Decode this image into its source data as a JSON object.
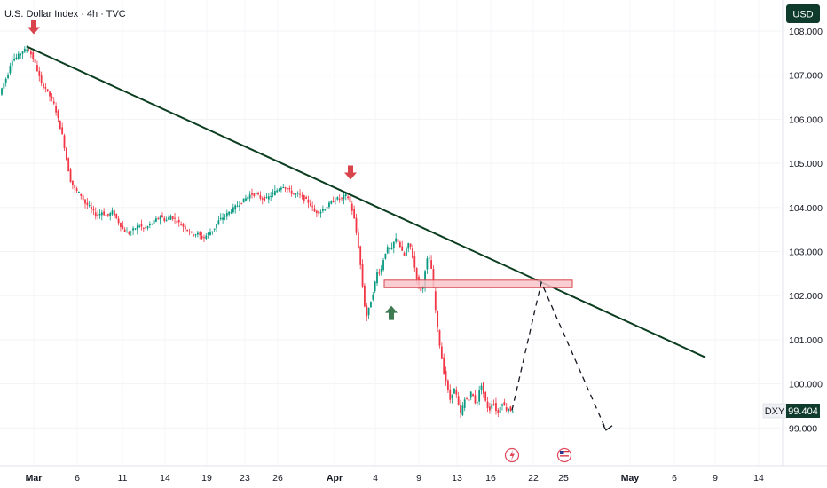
{
  "header": {
    "title": "U.S. Dollar Index · 4h · TVC"
  },
  "currency_button": {
    "label": "USD"
  },
  "price_badge": {
    "symbol": "DXY",
    "price": "99.404"
  },
  "colors": {
    "up": "#089981",
    "down": "#F23645",
    "trendline": "#0B3D1F",
    "arrow_down": "#D9434B",
    "arrow_up": "#3F7B52",
    "zone_fill": "#F7C6CB",
    "zone_stroke": "#D9434B"
  },
  "chart_data": {
    "type": "candlestick",
    "title": "U.S. Dollar Index · 4h · TVC",
    "ylim": [
      98.5,
      108.2
    ],
    "y_ticks": [
      "108.000",
      "107.000",
      "106.000",
      "105.000",
      "104.000",
      "103.000",
      "102.000",
      "101.000",
      "100.000",
      "99.000"
    ],
    "x_ticks": [
      {
        "label": "Mar",
        "bold": true
      },
      {
        "label": "6",
        "bold": false
      },
      {
        "label": "11",
        "bold": false
      },
      {
        "label": "14",
        "bold": false
      },
      {
        "label": "19",
        "bold": false
      },
      {
        "label": "23",
        "bold": false
      },
      {
        "label": "26",
        "bold": false
      },
      {
        "label": "Apr",
        "bold": true
      },
      {
        "label": "4",
        "bold": false
      },
      {
        "label": "9",
        "bold": false
      },
      {
        "label": "13",
        "bold": false
      },
      {
        "label": "16",
        "bold": false
      },
      {
        "label": "22",
        "bold": false
      },
      {
        "label": "25",
        "bold": false
      },
      {
        "label": "May",
        "bold": true
      },
      {
        "label": "6",
        "bold": false
      },
      {
        "label": "9",
        "bold": false
      },
      {
        "label": "14",
        "bold": false
      }
    ],
    "price_path": [
      {
        "x": 0,
        "y": 106.5
      },
      {
        "x": 5,
        "y": 106.8
      },
      {
        "x": 10,
        "y": 107.0
      },
      {
        "x": 14,
        "y": 107.35
      },
      {
        "x": 20,
        "y": 107.4
      },
      {
        "x": 27,
        "y": 107.55
      },
      {
        "x": 33,
        "y": 107.6
      },
      {
        "x": 37,
        "y": 107.45
      },
      {
        "x": 42,
        "y": 107.2
      },
      {
        "x": 48,
        "y": 106.8
      },
      {
        "x": 53,
        "y": 106.7
      },
      {
        "x": 58,
        "y": 106.5
      },
      {
        "x": 63,
        "y": 106.3
      },
      {
        "x": 68,
        "y": 105.9
      },
      {
        "x": 72,
        "y": 105.6
      },
      {
        "x": 77,
        "y": 105.0
      },
      {
        "x": 81,
        "y": 104.6
      },
      {
        "x": 86,
        "y": 104.4
      },
      {
        "x": 92,
        "y": 104.3
      },
      {
        "x": 97,
        "y": 104.1
      },
      {
        "x": 103,
        "y": 104.0
      },
      {
        "x": 110,
        "y": 103.8
      },
      {
        "x": 116,
        "y": 103.9
      },
      {
        "x": 122,
        "y": 103.8
      },
      {
        "x": 128,
        "y": 103.9
      },
      {
        "x": 134,
        "y": 103.7
      },
      {
        "x": 140,
        "y": 103.5
      },
      {
        "x": 146,
        "y": 103.4
      },
      {
        "x": 152,
        "y": 103.5
      },
      {
        "x": 158,
        "y": 103.6
      },
      {
        "x": 164,
        "y": 103.5
      },
      {
        "x": 170,
        "y": 103.6
      },
      {
        "x": 176,
        "y": 103.7
      },
      {
        "x": 182,
        "y": 103.8
      },
      {
        "x": 188,
        "y": 103.7
      },
      {
        "x": 194,
        "y": 103.8
      },
      {
        "x": 200,
        "y": 103.7
      },
      {
        "x": 206,
        "y": 103.6
      },
      {
        "x": 212,
        "y": 103.5
      },
      {
        "x": 218,
        "y": 103.4
      },
      {
        "x": 224,
        "y": 103.4
      },
      {
        "x": 230,
        "y": 103.3
      },
      {
        "x": 236,
        "y": 103.4
      },
      {
        "x": 242,
        "y": 103.5
      },
      {
        "x": 248,
        "y": 103.7
      },
      {
        "x": 254,
        "y": 103.8
      },
      {
        "x": 260,
        "y": 103.9
      },
      {
        "x": 266,
        "y": 104.0
      },
      {
        "x": 272,
        "y": 104.1
      },
      {
        "x": 278,
        "y": 104.2
      },
      {
        "x": 284,
        "y": 104.3
      },
      {
        "x": 290,
        "y": 104.3
      },
      {
        "x": 296,
        "y": 104.2
      },
      {
        "x": 302,
        "y": 104.2
      },
      {
        "x": 308,
        "y": 104.3
      },
      {
        "x": 314,
        "y": 104.4
      },
      {
        "x": 320,
        "y": 104.5
      },
      {
        "x": 326,
        "y": 104.4
      },
      {
        "x": 332,
        "y": 104.3
      },
      {
        "x": 338,
        "y": 104.3
      },
      {
        "x": 344,
        "y": 104.2
      },
      {
        "x": 350,
        "y": 104.1
      },
      {
        "x": 356,
        "y": 103.9
      },
      {
        "x": 362,
        "y": 103.9
      },
      {
        "x": 368,
        "y": 104.0
      },
      {
        "x": 374,
        "y": 104.1
      },
      {
        "x": 380,
        "y": 104.2
      },
      {
        "x": 386,
        "y": 104.2
      },
      {
        "x": 392,
        "y": 104.3
      },
      {
        "x": 396,
        "y": 104.1
      },
      {
        "x": 400,
        "y": 103.8
      },
      {
        "x": 403,
        "y": 103.4
      },
      {
        "x": 406,
        "y": 103.0
      },
      {
        "x": 409,
        "y": 102.4
      },
      {
        "x": 412,
        "y": 101.8
      },
      {
        "x": 415,
        "y": 101.5
      },
      {
        "x": 418,
        "y": 101.8
      },
      {
        "x": 421,
        "y": 102.0
      },
      {
        "x": 424,
        "y": 102.3
      },
      {
        "x": 427,
        "y": 102.6
      },
      {
        "x": 430,
        "y": 102.5
      },
      {
        "x": 433,
        "y": 102.8
      },
      {
        "x": 436,
        "y": 103.0
      },
      {
        "x": 439,
        "y": 103.1
      },
      {
        "x": 442,
        "y": 103.0
      },
      {
        "x": 445,
        "y": 103.2
      },
      {
        "x": 448,
        "y": 103.3
      },
      {
        "x": 451,
        "y": 103.2
      },
      {
        "x": 454,
        "y": 103.0
      },
      {
        "x": 457,
        "y": 102.9
      },
      {
        "x": 460,
        "y": 103.1
      },
      {
        "x": 463,
        "y": 103.2
      },
      {
        "x": 466,
        "y": 102.9
      },
      {
        "x": 469,
        "y": 102.6
      },
      {
        "x": 472,
        "y": 102.3
      },
      {
        "x": 475,
        "y": 102.1
      },
      {
        "x": 478,
        "y": 102.2
      },
      {
        "x": 481,
        "y": 102.7
      },
      {
        "x": 484,
        "y": 102.9
      },
      {
        "x": 487,
        "y": 102.7
      },
      {
        "x": 490,
        "y": 102.1
      },
      {
        "x": 493,
        "y": 101.5
      },
      {
        "x": 496,
        "y": 101.0
      },
      {
        "x": 499,
        "y": 100.6
      },
      {
        "x": 502,
        "y": 100.2
      },
      {
        "x": 505,
        "y": 100.0
      },
      {
        "x": 508,
        "y": 99.6
      },
      {
        "x": 511,
        "y": 99.8
      },
      {
        "x": 514,
        "y": 99.9
      },
      {
        "x": 517,
        "y": 99.6
      },
      {
        "x": 520,
        "y": 99.3
      },
      {
        "x": 523,
        "y": 99.5
      },
      {
        "x": 526,
        "y": 99.7
      },
      {
        "x": 529,
        "y": 99.6
      },
      {
        "x": 532,
        "y": 99.8
      },
      {
        "x": 535,
        "y": 99.7
      },
      {
        "x": 538,
        "y": 99.5
      },
      {
        "x": 541,
        "y": 99.8
      },
      {
        "x": 544,
        "y": 100.0
      },
      {
        "x": 547,
        "y": 99.7
      },
      {
        "x": 550,
        "y": 99.5
      },
      {
        "x": 553,
        "y": 99.4
      },
      {
        "x": 556,
        "y": 99.6
      },
      {
        "x": 559,
        "y": 99.5
      },
      {
        "x": 562,
        "y": 99.3
      },
      {
        "x": 565,
        "y": 99.5
      },
      {
        "x": 568,
        "y": 99.6
      },
      {
        "x": 571,
        "y": 99.4
      },
      {
        "x": 574,
        "y": 99.45
      },
      {
        "x": 577,
        "y": 99.4
      }
    ],
    "annotations": {
      "trendline": {
        "from": {
          "x": 30,
          "y": 107.65
        },
        "to": {
          "x": 795,
          "y": 100.6
        }
      },
      "resistance_zone": {
        "x1": 433,
        "x2": 645,
        "y_top": 102.35,
        "y_bottom": 102.18
      },
      "projection": [
        {
          "x": 577,
          "y": 99.4
        },
        {
          "x": 610,
          "y": 102.3
        },
        {
          "x": 683,
          "y": 98.95
        }
      ],
      "down_arrows": [
        {
          "x": 38,
          "y": 107.95
        },
        {
          "x": 395,
          "y": 104.65
        }
      ],
      "up_arrows": [
        {
          "x": 441,
          "y": 101.75
        }
      ],
      "event_icons": [
        {
          "x": 577,
          "kind": "lightning"
        },
        {
          "x": 636,
          "kind": "flag"
        }
      ]
    }
  }
}
